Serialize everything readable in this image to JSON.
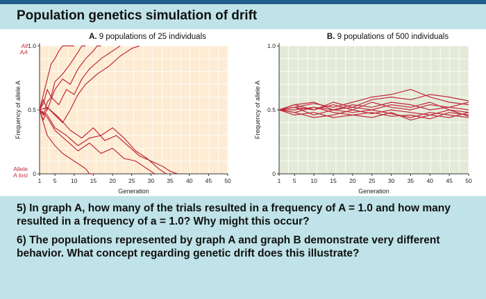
{
  "slide": {
    "title": "Population genetics simulation of drift",
    "question5": "5) In graph A, how many of the trials resulted in a frequency of A = 1.0 and how many resulted in a frequency of a = 1.0? Why might this occur?",
    "question6": "6) The populations represented by graph A and graph B demonstrate very different behavior. What concept regarding genetic drift does this illustrate?"
  },
  "colors": {
    "lineRed": "#c0283a",
    "panelA": "#fdecd3",
    "panelB": "#e3ead8",
    "grid": "#ffffff",
    "redLabel": "#c0283a"
  },
  "chart_data": [
    {
      "type": "line",
      "panel_letter": "A.",
      "title": "9 populations of 25 individuals",
      "xlabel": "Generation",
      "ylabel": "Frequency of allele A",
      "xlim": [
        1,
        50
      ],
      "ylim": [
        0,
        1.0
      ],
      "xticks": [
        "1",
        "5",
        "10",
        "15",
        "20",
        "25",
        "30",
        "35",
        "40",
        "45",
        "50"
      ],
      "yticks": [
        "0",
        "0.5",
        "1.0"
      ],
      "top_label": [
        "All",
        "AA"
      ],
      "bottom_label": [
        "Allele",
        "A lost"
      ],
      "grid": true,
      "series": [
        {
          "x": [
            1,
            2,
            3,
            4,
            5,
            6,
            7,
            8,
            9,
            10
          ],
          "y": [
            0.5,
            0.62,
            0.74,
            0.86,
            0.9,
            0.96,
            1.0,
            1.0,
            1.0,
            1.0
          ]
        },
        {
          "x": [
            1,
            2,
            3,
            4,
            5,
            7,
            9,
            11,
            12,
            13
          ],
          "y": [
            0.5,
            0.55,
            0.66,
            0.6,
            0.72,
            0.78,
            0.86,
            0.95,
            1.0,
            1.0
          ]
        },
        {
          "x": [
            1,
            2,
            3,
            5,
            7,
            9,
            11,
            13,
            15,
            16,
            17
          ],
          "y": [
            0.5,
            0.58,
            0.5,
            0.66,
            0.74,
            0.7,
            0.82,
            0.9,
            0.96,
            1.0,
            1.0
          ]
        },
        {
          "x": [
            1,
            2,
            3,
            4,
            6,
            8,
            10,
            12,
            14,
            17,
            20,
            22
          ],
          "y": [
            0.5,
            0.46,
            0.56,
            0.6,
            0.54,
            0.66,
            0.62,
            0.74,
            0.82,
            0.9,
            0.96,
            1.0
          ]
        },
        {
          "x": [
            1,
            2,
            3,
            5,
            7,
            9,
            11,
            13,
            16,
            19,
            22,
            25,
            27
          ],
          "y": [
            0.5,
            0.42,
            0.52,
            0.46,
            0.4,
            0.5,
            0.62,
            0.7,
            0.78,
            0.84,
            0.92,
            0.98,
            1.0
          ]
        },
        {
          "x": [
            1,
            2,
            3,
            5,
            7,
            9,
            11,
            13,
            14,
            15
          ],
          "y": [
            0.5,
            0.4,
            0.3,
            0.22,
            0.16,
            0.12,
            0.08,
            0.04,
            0.0,
            0.0
          ]
        },
        {
          "x": [
            1,
            3,
            5,
            8,
            11,
            14,
            17,
            20,
            23,
            26,
            29,
            31
          ],
          "y": [
            0.5,
            0.44,
            0.34,
            0.26,
            0.18,
            0.24,
            0.16,
            0.2,
            0.12,
            0.1,
            0.04,
            0.0
          ]
        },
        {
          "x": [
            1,
            3,
            5,
            8,
            11,
            14,
            17,
            20,
            23,
            26,
            29,
            32,
            34
          ],
          "y": [
            0.5,
            0.46,
            0.36,
            0.3,
            0.22,
            0.28,
            0.3,
            0.36,
            0.28,
            0.18,
            0.12,
            0.04,
            0.0
          ]
        },
        {
          "x": [
            1,
            3,
            6,
            9,
            12,
            15,
            18,
            21,
            24,
            27,
            30,
            33,
            35,
            37
          ],
          "y": [
            0.5,
            0.52,
            0.44,
            0.34,
            0.28,
            0.36,
            0.26,
            0.3,
            0.22,
            0.14,
            0.1,
            0.06,
            0.02,
            0.0
          ]
        }
      ]
    },
    {
      "type": "line",
      "panel_letter": "B.",
      "title": "9 populations of 500 individuals",
      "xlabel": "Generation",
      "ylabel": "Frequency of allele A",
      "xlim": [
        1,
        50
      ],
      "ylim": [
        0,
        1.0
      ],
      "xticks": [
        "1",
        "5",
        "10",
        "15",
        "20",
        "25",
        "30",
        "35",
        "40",
        "45",
        "50"
      ],
      "yticks": [
        "0",
        "0.5",
        "1.0"
      ],
      "grid": true,
      "series": [
        {
          "x": [
            1,
            5,
            10,
            15,
            20,
            25,
            30,
            35,
            40,
            45,
            50
          ],
          "y": [
            0.5,
            0.52,
            0.55,
            0.52,
            0.56,
            0.6,
            0.62,
            0.66,
            0.6,
            0.56,
            0.54
          ]
        },
        {
          "x": [
            1,
            5,
            10,
            15,
            20,
            25,
            30,
            35,
            40,
            45,
            50
          ],
          "y": [
            0.5,
            0.54,
            0.5,
            0.56,
            0.52,
            0.58,
            0.6,
            0.58,
            0.62,
            0.6,
            0.57
          ]
        },
        {
          "x": [
            1,
            5,
            10,
            15,
            20,
            25,
            30,
            35,
            40,
            45,
            50
          ],
          "y": [
            0.5,
            0.48,
            0.52,
            0.5,
            0.54,
            0.52,
            0.56,
            0.54,
            0.5,
            0.52,
            0.5
          ]
        },
        {
          "x": [
            1,
            5,
            10,
            15,
            20,
            25,
            30,
            35,
            40,
            45,
            50
          ],
          "y": [
            0.5,
            0.52,
            0.46,
            0.5,
            0.48,
            0.5,
            0.47,
            0.44,
            0.48,
            0.46,
            0.44
          ]
        },
        {
          "x": [
            1,
            5,
            10,
            15,
            20,
            25,
            30,
            35,
            40,
            45,
            50
          ],
          "y": [
            0.5,
            0.46,
            0.48,
            0.44,
            0.46,
            0.48,
            0.45,
            0.46,
            0.43,
            0.48,
            0.46
          ]
        },
        {
          "x": [
            1,
            5,
            10,
            15,
            20,
            25,
            30,
            35,
            40,
            45,
            50
          ],
          "y": [
            0.5,
            0.5,
            0.52,
            0.48,
            0.46,
            0.44,
            0.48,
            0.42,
            0.46,
            0.44,
            0.48
          ]
        },
        {
          "x": [
            1,
            5,
            10,
            15,
            20,
            25,
            30,
            35,
            40,
            45,
            50
          ],
          "y": [
            0.5,
            0.54,
            0.56,
            0.5,
            0.52,
            0.5,
            0.54,
            0.52,
            0.56,
            0.5,
            0.48
          ]
        },
        {
          "x": [
            1,
            5,
            10,
            15,
            20,
            25,
            30,
            35,
            40,
            45,
            50
          ],
          "y": [
            0.5,
            0.48,
            0.44,
            0.46,
            0.5,
            0.47,
            0.5,
            0.48,
            0.46,
            0.5,
            0.45
          ]
        },
        {
          "x": [
            1,
            5,
            10,
            15,
            20,
            25,
            30,
            35,
            40,
            45,
            50
          ],
          "y": [
            0.5,
            0.52,
            0.5,
            0.54,
            0.5,
            0.56,
            0.52,
            0.5,
            0.54,
            0.52,
            0.56
          ]
        }
      ]
    }
  ]
}
